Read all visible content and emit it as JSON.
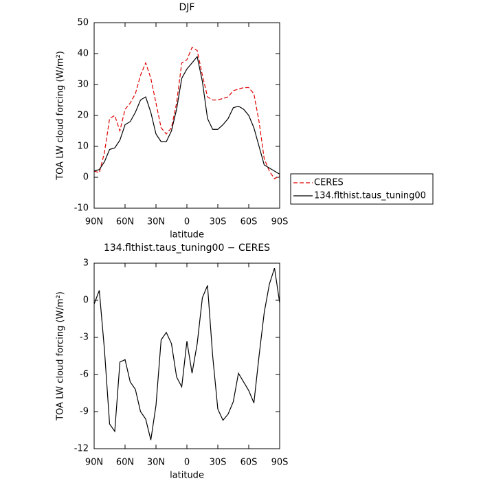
{
  "chart_data": [
    {
      "type": "line",
      "title": "DJF",
      "ylabel": "TOA LW cloud forcing (W/m²)",
      "xlabel": "latitude",
      "x": [
        90,
        85,
        80,
        75,
        70,
        65,
        60,
        55,
        50,
        45,
        40,
        35,
        30,
        25,
        20,
        15,
        10,
        5,
        0,
        -5,
        -10,
        -15,
        -20,
        -25,
        -30,
        -35,
        -40,
        -45,
        -50,
        -55,
        -60,
        -65,
        -70,
        -75,
        -80,
        -85,
        -90
      ],
      "series": [
        {
          "name": "CERES",
          "color": "#e00000",
          "line_style": "dashed",
          "values": [
            2,
            1.5,
            8,
            19,
            20,
            15,
            22,
            24,
            27,
            33,
            37,
            32,
            24,
            16,
            14,
            16,
            24,
            37,
            38,
            42,
            41,
            33,
            26,
            25,
            25,
            25.5,
            26,
            28,
            28.5,
            29,
            29,
            27,
            18,
            6,
            2,
            -0.5,
            0.5
          ]
        },
        {
          "name": "134.flthist.taus_tuning00",
          "color": "#000000",
          "line_style": "solid",
          "values": [
            2,
            2.5,
            5,
            9,
            9.5,
            12,
            17,
            18,
            21,
            25,
            26,
            21,
            14,
            11.5,
            11.5,
            15,
            22,
            32,
            35,
            37,
            39,
            31,
            19,
            15.5,
            15.5,
            17,
            19,
            22.5,
            23,
            22,
            20,
            16,
            10,
            4,
            3,
            2,
            1
          ]
        }
      ],
      "xlim": [
        90,
        -90
      ],
      "xticks": [
        {
          "value": 90,
          "label": "90N"
        },
        {
          "value": 60,
          "label": "60N"
        },
        {
          "value": 30,
          "label": "30N"
        },
        0,
        {
          "value": -30,
          "label": "30S"
        },
        {
          "value": -60,
          "label": "60S"
        },
        {
          "value": -90,
          "label": "90S"
        }
      ],
      "ylim": [
        -10,
        50
      ],
      "yticks": [
        -10,
        0,
        10,
        20,
        30,
        40,
        50
      ],
      "legend": "right"
    },
    {
      "type": "line",
      "title": "134.flthist.taus_tuning00 − CERES",
      "ylabel": "TOA LW cloud forcing (W/m²)",
      "xlabel": "latitude",
      "x": [
        90,
        85,
        80,
        75,
        70,
        65,
        60,
        55,
        50,
        45,
        40,
        35,
        30,
        25,
        20,
        15,
        10,
        5,
        0,
        -5,
        -10,
        -15,
        -20,
        -25,
        -30,
        -35,
        -40,
        -45,
        -50,
        -55,
        -60,
        -65,
        -70,
        -75,
        -80,
        -85,
        -90
      ],
      "values": [
        -0.3,
        0.8,
        -4,
        -10,
        -10.6,
        -5,
        -4.8,
        -6.6,
        -7.2,
        -9,
        -9.6,
        -11.3,
        -8.5,
        -3.2,
        -2.6,
        -3.5,
        -6.2,
        -7,
        -3.3,
        -5.9,
        -3.5,
        0.2,
        1.2,
        -4.5,
        -8.8,
        -9.7,
        -9.2,
        -8.2,
        -5.9,
        -6.6,
        -7.3,
        -8.3,
        -4.5,
        -1,
        1.3,
        2.6,
        -0.2
      ],
      "color": "#000000",
      "xlim": [
        90,
        -90
      ],
      "xticks": [
        {
          "value": 90,
          "label": "90N"
        },
        {
          "value": 60,
          "label": "60N"
        },
        {
          "value": 30,
          "label": "30N"
        },
        0,
        {
          "value": -30,
          "label": "30S"
        },
        {
          "value": -60,
          "label": "60S"
        },
        {
          "value": -90,
          "label": "90S"
        }
      ],
      "ylim": [
        -12,
        3
      ],
      "yticks": [
        -12,
        -9,
        -6,
        -3,
        0,
        3
      ]
    }
  ]
}
